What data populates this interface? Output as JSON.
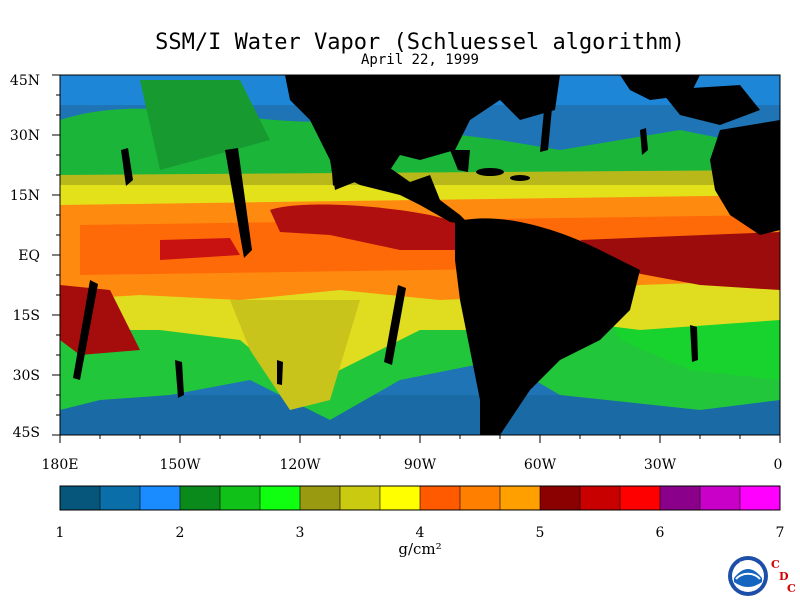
{
  "header": {
    "title": "SSM/I Water Vapor (Schluessel algorithm)",
    "date": "April 22, 1999"
  },
  "map": {
    "lat_labels": [
      "45N",
      "30N",
      "15N",
      "EQ",
      "15S",
      "30S",
      "45S"
    ],
    "lon_labels": [
      "180E",
      "150W",
      "120W",
      "90W",
      "60W",
      "30W",
      "0"
    ],
    "colors": {
      "land": "#000000",
      "ocean_low": "#1f6fb0",
      "ocean_high": "#2a82c8",
      "dry": "#1fa23a",
      "mid": "#33d33a",
      "moist_yellow": "#e4e21a",
      "moist_orange": "#ff8a10",
      "wet_red": "#b01010",
      "wet_dark": "#8a0a0a"
    }
  },
  "colorbar": {
    "ticks": [
      "1",
      "2",
      "3",
      "4",
      "5",
      "6",
      "7"
    ],
    "unit": "g/cm²",
    "colors": [
      "#06557a",
      "#0a6ea8",
      "#1a8cff",
      "#0a8a1a",
      "#10c218",
      "#10ff10",
      "#9a9a10",
      "#caca10",
      "#ffff00",
      "#ff5a00",
      "#ff8000",
      "#ffa000",
      "#8b0000",
      "#c80000",
      "#ff0000",
      "#8b008b",
      "#c800c8",
      "#ff00ff"
    ]
  },
  "logo": {
    "text": "NOAA",
    "letters": [
      "C",
      "D",
      "C"
    ]
  }
}
